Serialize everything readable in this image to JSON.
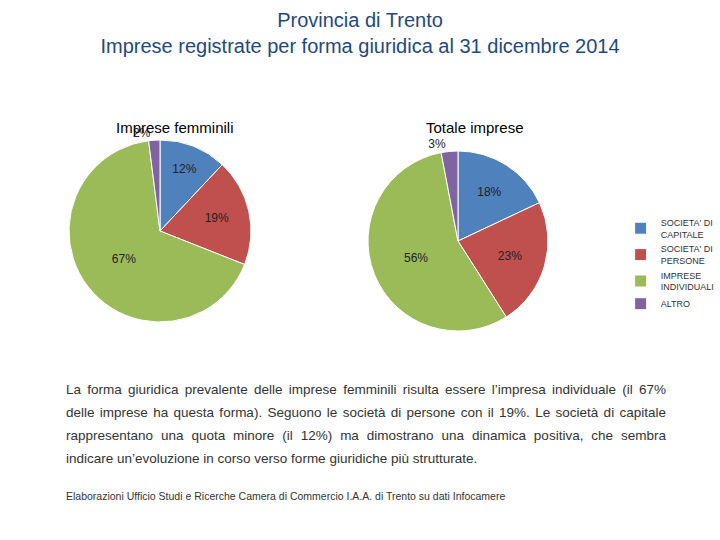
{
  "title": [
    "Provincia di Trento",
    "Imprese registrate per forma giuridica al 31 dicembre 2014"
  ],
  "chart_data": [
    {
      "type": "pie",
      "title": "Imprese femminili",
      "categories": [
        "SOCIETA' DI CAPITALE",
        "SOCIETA' DI PERSONE",
        "IMPRESE INDIVIDUALI",
        "ALTRO"
      ],
      "values": [
        12,
        19,
        67,
        2
      ],
      "value_labels": [
        "12%",
        "19%",
        "67%",
        "2%"
      ],
      "colors": [
        "#4f81bd",
        "#c0504d",
        "#9bbb59",
        "#8064a2"
      ],
      "data_labels": true
    },
    {
      "type": "pie",
      "title": "Totale imprese",
      "categories": [
        "SOCIETA' DI CAPITALE",
        "SOCIETA' DI PERSONE",
        "IMPRESE INDIVIDUALI",
        "ALTRO"
      ],
      "values": [
        18,
        23,
        56,
        3
      ],
      "value_labels": [
        "18%",
        "23%",
        "56%",
        "3%"
      ],
      "colors": [
        "#4f81bd",
        "#c0504d",
        "#9bbb59",
        "#8064a2"
      ],
      "data_labels": true,
      "legend": "right"
    }
  ],
  "text": "La forma giuridica prevalente delle imprese femminili risulta essere l’impresa individuale (il 67% delle imprese ha questa forma). Seguono le società di persone con il 19%. Le società di capitale rappresentano una quota minore (il 12%) ma dimostrano una dinamica positiva, che sembra indicare un’evoluzione in corso verso forme giuridiche più strutturate.",
  "source": "Elaborazioni Ufficio Studi e Ricerche Camera di Commercio I.A.A. di Trento su dati Infocamere"
}
